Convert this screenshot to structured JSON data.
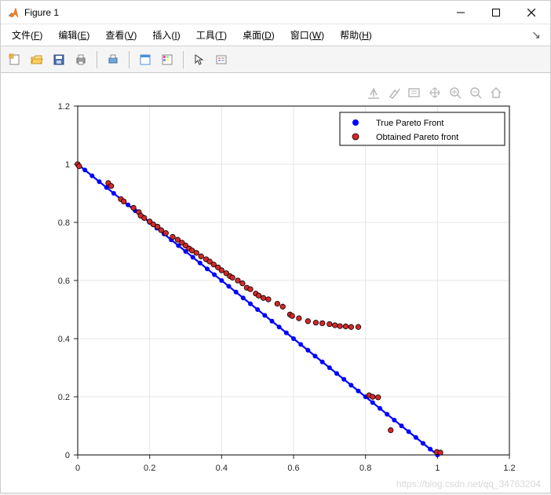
{
  "window": {
    "title": "Figure 1",
    "minimize_icon": "minimize",
    "maximize_icon": "maximize",
    "close_icon": "close"
  },
  "menu": {
    "items": [
      {
        "label": "文件",
        "key": "F"
      },
      {
        "label": "编辑",
        "key": "E"
      },
      {
        "label": "查看",
        "key": "V"
      },
      {
        "label": "插入",
        "key": "I"
      },
      {
        "label": "工具",
        "key": "T"
      },
      {
        "label": "桌面",
        "key": "D"
      },
      {
        "label": "窗口",
        "key": "W"
      },
      {
        "label": "帮助",
        "key": "H"
      }
    ]
  },
  "toolbar": {
    "groups": [
      [
        "new-figure",
        "open",
        "save",
        "print"
      ],
      [
        "print-preview"
      ],
      [
        "link-plot",
        "colorbar"
      ],
      [
        "edit-cursor",
        "insert-legend"
      ]
    ]
  },
  "axes_toolbar": {
    "icons": [
      "export",
      "brush",
      "data-tip",
      "pan",
      "zoom-in",
      "zoom-out",
      "home"
    ]
  },
  "chart": {
    "type": "scatter+line",
    "background_color": "#ffffff",
    "axes_box_color": "#000000",
    "grid_color": "#e6e6e6",
    "tick_color": "#262626",
    "tick_fontsize": 11,
    "xlim": [
      0,
      1.2
    ],
    "ylim": [
      0,
      1.2
    ],
    "xticks": [
      0,
      0.2,
      0.4,
      0.6,
      0.8,
      1,
      1.2
    ],
    "yticks": [
      0,
      0.2,
      0.4,
      0.6,
      0.8,
      1,
      1.2
    ],
    "xtick_labels": [
      "0",
      "0.2",
      "0.4",
      "0.6",
      "0.8",
      "1",
      "1.2"
    ],
    "ytick_labels": [
      "0",
      "0.2",
      "0.4",
      "0.6",
      "0.8",
      "1",
      "1.2"
    ],
    "legend": {
      "position": "northeast",
      "border_color": "#000000",
      "background": "#ffffff",
      "fontsize": 11,
      "entries": [
        {
          "label": "True Pareto Front",
          "marker": "circle",
          "color": "#0000ff"
        },
        {
          "label": "Obtained Pareto front",
          "marker": "circle",
          "color": "#d62728",
          "edge": "#000000"
        }
      ]
    },
    "series_true": {
      "label": "True Pareto Front",
      "color": "#0000ff",
      "line_width": 2.2,
      "marker_size": 6,
      "points": [
        [
          0,
          1
        ],
        [
          1,
          0
        ]
      ]
    },
    "series_obtained": {
      "label": "Obtained Pareto front",
      "color": "#d62728",
      "edge_color": "#000000",
      "marker_size": 6.5,
      "points": [
        [
          0.0,
          1.0
        ],
        [
          0.004,
          0.993
        ],
        [
          0.085,
          0.935
        ],
        [
          0.093,
          0.925
        ],
        [
          0.12,
          0.88
        ],
        [
          0.128,
          0.872
        ],
        [
          0.155,
          0.85
        ],
        [
          0.17,
          0.835
        ],
        [
          0.175,
          0.823
        ],
        [
          0.185,
          0.815
        ],
        [
          0.2,
          0.803
        ],
        [
          0.21,
          0.793
        ],
        [
          0.222,
          0.785
        ],
        [
          0.232,
          0.773
        ],
        [
          0.245,
          0.763
        ],
        [
          0.264,
          0.75
        ],
        [
          0.278,
          0.74
        ],
        [
          0.29,
          0.73
        ],
        [
          0.3,
          0.72
        ],
        [
          0.31,
          0.71
        ],
        [
          0.318,
          0.703
        ],
        [
          0.33,
          0.695
        ],
        [
          0.343,
          0.683
        ],
        [
          0.357,
          0.673
        ],
        [
          0.367,
          0.665
        ],
        [
          0.378,
          0.655
        ],
        [
          0.39,
          0.645
        ],
        [
          0.4,
          0.635
        ],
        [
          0.413,
          0.625
        ],
        [
          0.423,
          0.615
        ],
        [
          0.43,
          0.61
        ],
        [
          0.445,
          0.6
        ],
        [
          0.458,
          0.59
        ],
        [
          0.47,
          0.575
        ],
        [
          0.48,
          0.57
        ],
        [
          0.495,
          0.555
        ],
        [
          0.503,
          0.548
        ],
        [
          0.516,
          0.54
        ],
        [
          0.53,
          0.535
        ],
        [
          0.555,
          0.52
        ],
        [
          0.57,
          0.51
        ],
        [
          0.59,
          0.483
        ],
        [
          0.596,
          0.478
        ],
        [
          0.615,
          0.47
        ],
        [
          0.64,
          0.46
        ],
        [
          0.662,
          0.455
        ],
        [
          0.68,
          0.453
        ],
        [
          0.7,
          0.45
        ],
        [
          0.715,
          0.446
        ],
        [
          0.729,
          0.443
        ],
        [
          0.745,
          0.442
        ],
        [
          0.76,
          0.44
        ],
        [
          0.78,
          0.44
        ],
        [
          0.81,
          0.205
        ],
        [
          0.82,
          0.2
        ],
        [
          0.835,
          0.198
        ],
        [
          0.87,
          0.085
        ],
        [
          0.998,
          0.01
        ],
        [
          1.008,
          0.008
        ]
      ]
    }
  },
  "watermark": "https://blog.csdn.net/qq_34763204"
}
